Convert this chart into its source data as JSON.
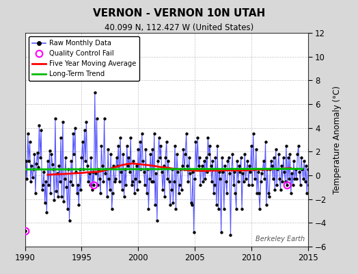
{
  "title": "VERNON - VERNON 10N UTAH",
  "subtitle": "40.099 N, 112.427 W (United States)",
  "ylabel": "Temperature Anomaly (°C)",
  "xlim": [
    1990,
    2015
  ],
  "ylim": [
    -6,
    12
  ],
  "yticks": [
    -6,
    -4,
    -2,
    0,
    2,
    4,
    6,
    8,
    10,
    12
  ],
  "xticks": [
    1990,
    1995,
    2000,
    2005,
    2010,
    2015
  ],
  "fig_background": "#d8d8d8",
  "plot_background": "#ffffff",
  "raw_line_color": "#5555ff",
  "raw_dot_color": "#000000",
  "moving_avg_color": "#ff0000",
  "trend_color": "#00bb00",
  "qc_fail_color": "#ff00ff",
  "watermark": "Berkeley Earth",
  "legend_items": [
    "Raw Monthly Data",
    "Quality Control Fail",
    "Five Year Moving Average",
    "Long-Term Trend"
  ],
  "raw_data": [
    -4.7,
    1.2,
    -0.3,
    3.5,
    1.2,
    2.8,
    -0.5,
    0.8,
    -0.2,
    0.5,
    1.8,
    -1.5,
    1.0,
    1.9,
    0.7,
    4.2,
    1.5,
    3.8,
    -1.2,
    -0.8,
    0.3,
    -2.3,
    -0.5,
    -3.1,
    1.2,
    -0.8,
    2.1,
    -1.5,
    1.8,
    0.9,
    0.5,
    -2.1,
    4.8,
    -1.3,
    0.2,
    -1.8,
    0.8,
    -0.5,
    3.2,
    -1.8,
    4.5,
    -2.2,
    -0.3,
    1.5,
    -1.0,
    -2.8,
    0.5,
    -3.8,
    -0.5,
    1.2,
    -0.8,
    3.5,
    1.8,
    4.0,
    0.3,
    -1.5,
    -0.8,
    -2.5,
    0.5,
    -1.2,
    1.5,
    2.8,
    0.5,
    3.8,
    1.2,
    4.5,
    0.8,
    -0.5,
    0.2,
    -0.8,
    1.5,
    -1.2,
    0.3,
    -0.8,
    7.0,
    0.2,
    4.8,
    -0.8,
    0.5,
    -0.3,
    -1.5,
    2.5,
    0.8,
    -0.5,
    4.8,
    0.2,
    0.5,
    -1.8,
    2.2,
    -0.3,
    -1.2,
    1.8,
    -2.8,
    -1.5,
    0.8,
    -0.5,
    -0.3,
    1.5,
    0.8,
    2.5,
    -0.5,
    3.2,
    0.3,
    -1.2,
    1.8,
    -1.8,
    0.5,
    -0.8,
    2.5,
    0.8,
    1.5,
    0.3,
    3.2,
    -0.8,
    -0.5,
    1.2,
    -1.5,
    -0.3,
    0.8,
    -1.2,
    2.2,
    -0.5,
    2.8,
    0.5,
    3.5,
    1.2,
    0.3,
    -0.8,
    2.2,
    -1.5,
    0.5,
    -2.8,
    -0.3,
    1.8,
    -0.5,
    2.2,
    -0.5,
    3.5,
    -2.5,
    0.2,
    -3.8,
    1.2,
    3.2,
    1.5,
    2.5,
    0.3,
    -1.2,
    0.8,
    -1.8,
    1.5,
    2.8,
    -0.3,
    1.2,
    -0.5,
    -2.5,
    -1.2,
    0.5,
    -2.3,
    -0.5,
    2.5,
    -2.8,
    1.8,
    0.3,
    -1.5,
    -0.8,
    0.5,
    -1.2,
    0.8,
    2.2,
    0.5,
    1.8,
    3.5,
    0.8,
    -0.5,
    1.5,
    0.2,
    -2.3,
    -2.5,
    0.3,
    -4.8,
    -0.3,
    2.8,
    0.5,
    3.2,
    0.8,
    1.5,
    -0.8,
    0.5,
    0.8,
    -0.5,
    1.2,
    -0.3,
    1.5,
    0.3,
    3.2,
    1.8,
    2.5,
    0.8,
    -0.5,
    1.2,
    -1.5,
    -0.8,
    1.5,
    -2.5,
    2.5,
    -2.8,
    0.3,
    -0.3,
    -4.8,
    1.5,
    0.3,
    -2.8,
    0.8,
    -0.5,
    -1.5,
    1.2,
    1.5,
    0.2,
    -5.0,
    0.5,
    1.8,
    -0.8,
    0.3,
    -1.5,
    -2.8,
    1.2,
    -0.5,
    0.8,
    0.3,
    1.5,
    -2.8,
    0.2,
    -0.5,
    1.8,
    -0.3,
    0.5,
    1.2,
    -0.8,
    0.8,
    0.3,
    2.5,
    -0.8,
    3.5,
    0.5,
    -0.3,
    2.2,
    -1.5,
    0.3,
    -1.5,
    -2.8,
    -0.5,
    0.2,
    0.5,
    1.2,
    -0.3,
    2.8,
    -2.5,
    0.5,
    -1.5,
    -1.8,
    0.5,
    1.2,
    0.8,
    -0.3,
    1.5,
    -1.2,
    2.2,
    -0.8,
    0.5,
    1.8,
    -0.3,
    -1.2,
    0.8,
    -0.5,
    1.5,
    0.3,
    -0.5,
    2.5,
    -0.8,
    1.5,
    -0.3,
    1.8,
    -1.5,
    0.2,
    -0.8,
    1.2,
    -0.3,
    0.5,
    -0.3,
    1.8,
    2.5,
    0.3,
    -0.8,
    1.5,
    0.5,
    -0.3,
    1.2,
    -0.5,
    0.8,
    -1.5,
    0.5,
    -0.8,
    2.2,
    1.5,
    0.3,
    2.8,
    -0.5,
    0.8,
    -0.3,
    1.5,
    -1.2,
    0.5,
    2.2,
    -0.5,
    3.8,
    1.2,
    0.5,
    2.5,
    -0.8,
    0.3,
    -1.5,
    -0.3,
    1.8,
    0.5,
    -1.5,
    3.5,
    0.5,
    -1.2,
    -0.8,
    2.8,
    0.3,
    -0.5,
    1.5,
    -0.8,
    -1.2,
    0.5,
    0.8,
    1.5,
    -0.3,
    2.5,
    -1.2,
    1.8,
    0.5,
    -0.8,
    1.2,
    -1.5,
    0.3,
    -0.5,
    2.2,
    0.5,
    -0.8,
    3.2,
    0.3,
    -1.5,
    0.8,
    1.2,
    -0.3,
    0.5,
    -0.8,
    1.5
  ],
  "qc_fail_indices": [
    0,
    73,
    278
  ],
  "moving_avg_x": [
    1992.0,
    1992.5,
    1993.0,
    1993.5,
    1994.0,
    1994.5,
    1995.0,
    1995.5,
    1996.0,
    1996.5,
    1997.0,
    1997.5,
    1998.0,
    1998.5,
    1999.0,
    1999.5,
    2000.0,
    2000.5,
    2001.0,
    2001.5,
    2002.0,
    2002.5,
    2003.0,
    2003.5,
    2004.0,
    2004.5,
    2005.0,
    2005.5,
    2006.0,
    2006.5,
    2007.0,
    2007.5,
    2008.0,
    2008.5,
    2009.0,
    2009.5,
    2010.0,
    2010.5,
    2011.0,
    2011.5,
    2012.0,
    2012.5,
    2013.0,
    2013.5
  ],
  "moving_avg_y": [
    0.05,
    0.08,
    0.1,
    0.12,
    0.15,
    0.18,
    0.2,
    0.25,
    0.28,
    0.3,
    0.4,
    0.55,
    0.7,
    0.85,
    0.95,
    1.0,
    0.95,
    0.9,
    0.85,
    0.78,
    0.7,
    0.65,
    0.58,
    0.52,
    0.48,
    0.42,
    0.4,
    0.38,
    0.38,
    0.4,
    0.4,
    0.42,
    0.42,
    0.42,
    0.4,
    0.42,
    0.45,
    0.48,
    0.48,
    0.5,
    0.52,
    0.55,
    0.58,
    0.6
  ],
  "trend_x": [
    1990.0,
    2014.5
  ],
  "trend_y": [
    0.5,
    0.55
  ]
}
